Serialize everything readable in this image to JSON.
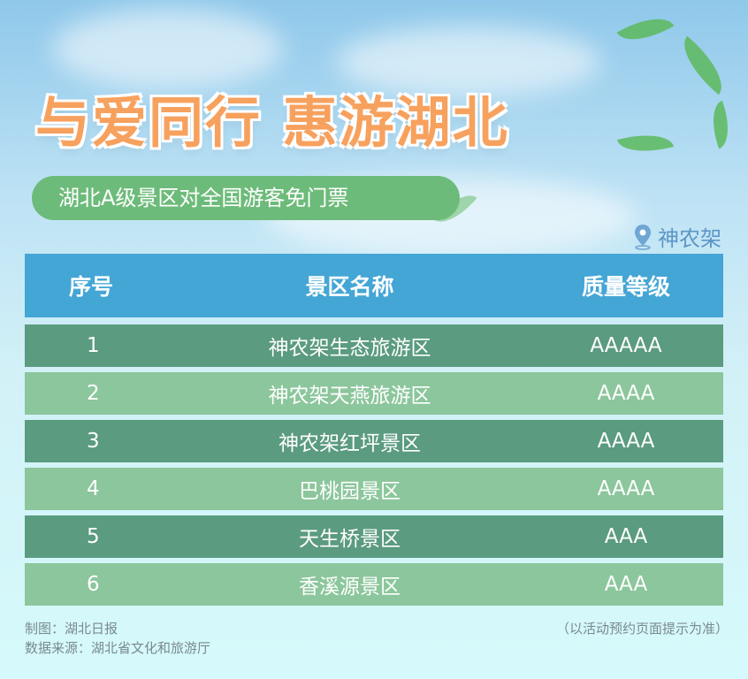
{
  "title": "与爱同行 惠游湖北",
  "subtitle": "湖北A级景区对全国游客免门票",
  "location": {
    "icon": "map-pin-icon",
    "label": "神农架"
  },
  "table": {
    "headers": [
      "序号",
      "景区名称",
      "质量等级"
    ],
    "rows": [
      {
        "no": "1",
        "name": "神农架生态旅游区",
        "level": "AAAAA"
      },
      {
        "no": "2",
        "name": "神农架天燕旅游区",
        "level": "AAAA"
      },
      {
        "no": "3",
        "name": "神农架红坪景区",
        "level": "AAAA"
      },
      {
        "no": "4",
        "name": "巴桃园景区",
        "level": "AAAA"
      },
      {
        "no": "5",
        "name": "天生桥景区",
        "level": "AAA"
      },
      {
        "no": "6",
        "name": "香溪源景区",
        "level": "AAA"
      }
    ]
  },
  "footer": {
    "credit": "制图：湖北日报",
    "source": "数据来源：湖北省文化和旅游厅",
    "note": "（以活动预约页面提示为准）"
  },
  "colors": {
    "title": "#f7a15e",
    "pill": "#6dbb7a",
    "header": "#44a6d5",
    "row_dark": "#5b9b80",
    "row_light": "#8cc69c"
  }
}
